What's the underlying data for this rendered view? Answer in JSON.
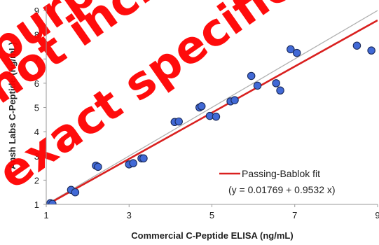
{
  "chart_data": {
    "type": "scatter",
    "title": "",
    "xlabel": "Commercial C-Peptide ELISA (ng/mL)",
    "ylabel": "Ansh Labs C-Peptide (ng/mL)",
    "xlim": [
      1,
      9
    ],
    "ylim": [
      1,
      9
    ],
    "x_ticks": [
      "1",
      "3",
      "5",
      "7",
      "9"
    ],
    "y_ticks": [
      "1",
      "2",
      "3",
      "4",
      "5",
      "6",
      "7",
      "8",
      "9"
    ],
    "grid": false,
    "legend_position": "bottom-right",
    "points": [
      {
        "x": 1.1,
        "y": 1.05
      },
      {
        "x": 1.15,
        "y": 1.02
      },
      {
        "x": 1.6,
        "y": 1.6
      },
      {
        "x": 1.7,
        "y": 1.5
      },
      {
        "x": 2.2,
        "y": 2.6
      },
      {
        "x": 2.25,
        "y": 2.55
      },
      {
        "x": 3.0,
        "y": 2.65
      },
      {
        "x": 3.1,
        "y": 2.7
      },
      {
        "x": 3.3,
        "y": 2.9
      },
      {
        "x": 3.35,
        "y": 2.9
      },
      {
        "x": 4.1,
        "y": 4.4
      },
      {
        "x": 4.2,
        "y": 4.42
      },
      {
        "x": 4.7,
        "y": 5.0
      },
      {
        "x": 4.75,
        "y": 5.05
      },
      {
        "x": 4.95,
        "y": 4.65
      },
      {
        "x": 5.1,
        "y": 4.62
      },
      {
        "x": 5.45,
        "y": 5.25
      },
      {
        "x": 5.55,
        "y": 5.3
      },
      {
        "x": 5.95,
        "y": 6.3
      },
      {
        "x": 6.1,
        "y": 5.9
      },
      {
        "x": 6.55,
        "y": 6.0
      },
      {
        "x": 6.65,
        "y": 5.7
      },
      {
        "x": 6.9,
        "y": 7.4
      },
      {
        "x": 7.05,
        "y": 7.25
      },
      {
        "x": 8.5,
        "y": 7.55
      },
      {
        "x": 8.85,
        "y": 7.35
      }
    ],
    "series": [
      {
        "name": "Passing-Bablok fit",
        "equation": "(y = 0.01769 + 0.9532 x)",
        "intercept": 0.01769,
        "slope": 0.9532,
        "color": "#d9201f"
      },
      {
        "intercept": 0,
        "slope": 1,
        "color": "#b0b0b0"
      }
    ],
    "marker_color": "#4169d6",
    "marker_edge_color": "#1a2a5a",
    "watermark": [
      "purposes only",
      "not included",
      "exact specifications"
    ],
    "watermark_color": "#ff0000"
  }
}
